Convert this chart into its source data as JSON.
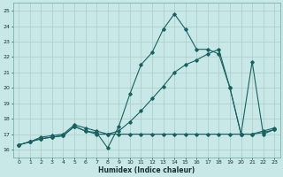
{
  "xlabel": "Humidex (Indice chaleur)",
  "bg_color": "#c8e8e8",
  "grid_color": "#b0d0d0",
  "line_color": "#1a6060",
  "xlim": [
    -0.5,
    23.5
  ],
  "ylim": [
    15.5,
    25.5
  ],
  "yticks": [
    16,
    17,
    18,
    19,
    20,
    21,
    22,
    23,
    24,
    25
  ],
  "xticks": [
    0,
    1,
    2,
    3,
    4,
    5,
    6,
    7,
    8,
    9,
    10,
    11,
    12,
    13,
    14,
    15,
    16,
    17,
    18,
    19,
    20,
    21,
    22,
    23
  ],
  "line1_x": [
    0,
    1,
    2,
    3,
    4,
    5,
    6,
    7,
    8,
    9,
    10,
    11,
    12,
    13,
    14,
    15,
    16,
    17,
    18,
    19,
    20,
    21,
    22,
    23
  ],
  "line1_y": [
    16.3,
    16.5,
    16.7,
    16.8,
    16.9,
    17.5,
    17.2,
    17.1,
    16.1,
    17.5,
    19.6,
    21.5,
    22.3,
    23.8,
    24.8,
    23.8,
    22.5,
    22.5,
    22.2,
    20.0,
    17.0,
    21.7,
    17.0,
    17.3
  ],
  "line2_x": [
    0,
    1,
    2,
    3,
    4,
    5,
    6,
    7,
    8,
    9,
    10,
    11,
    12,
    13,
    14,
    15,
    16,
    17,
    18,
    19,
    20,
    21,
    22,
    23
  ],
  "line2_y": [
    16.3,
    16.5,
    16.8,
    16.9,
    17.0,
    17.6,
    17.4,
    17.2,
    17.0,
    17.2,
    17.8,
    18.5,
    19.3,
    20.1,
    21.0,
    21.5,
    21.8,
    22.2,
    22.5,
    20.0,
    17.0,
    17.0,
    17.2,
    17.4
  ],
  "line3_x": [
    0,
    1,
    2,
    3,
    4,
    5,
    6,
    7,
    8,
    9,
    10,
    11,
    12,
    13,
    14,
    15,
    16,
    17,
    18,
    19,
    20,
    21,
    22,
    23
  ],
  "line3_y": [
    16.3,
    16.5,
    16.7,
    16.8,
    16.9,
    17.5,
    17.2,
    17.0,
    17.0,
    17.0,
    17.0,
    17.0,
    17.0,
    17.0,
    17.0,
    17.0,
    17.0,
    17.0,
    17.0,
    17.0,
    17.0,
    17.0,
    17.1,
    17.3
  ]
}
